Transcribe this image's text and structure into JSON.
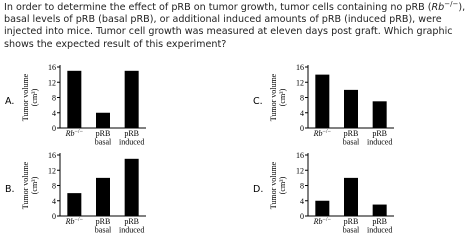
{
  "question": [
    "In order to determine the effect of pRB on tumor growth, tumor cells containing no pRB (",
    "Rb",
    "−/−",
    "), basal levels of pRB (basal pRB), or additional induced amounts of pRB (induced pRB), were injected into mice. Tumor cell growth was measured at eleven days post graft. Which graphic shows the expected result of this experiment?"
  ],
  "chart_data": [
    {
      "label": "A.",
      "type": "bar",
      "ylabel": [
        "Tumor volume",
        "(cm³)"
      ],
      "categories": [
        [
          "Rb",
          "−/−"
        ],
        [
          "pRB",
          "basal"
        ],
        [
          "pRB",
          "induced"
        ]
      ],
      "values": [
        15,
        4,
        15
      ],
      "color": "#000000",
      "ylim": [
        0,
        16
      ],
      "yticks": [
        0,
        4,
        8,
        12,
        16
      ]
    },
    {
      "label": "B.",
      "type": "bar",
      "ylabel": [
        "Tumor volume",
        "(cm³)"
      ],
      "categories": [
        [
          "Rb",
          "−/−"
        ],
        [
          "pRB",
          "basal"
        ],
        [
          "pRB",
          "induced"
        ]
      ],
      "values": [
        6,
        10,
        15
      ],
      "color": "#000000",
      "ylim": [
        0,
        16
      ],
      "yticks": [
        0,
        4,
        8,
        12,
        16
      ]
    },
    {
      "label": "C.",
      "type": "bar",
      "ylabel": [
        "Tumor volume",
        "(cm³)"
      ],
      "categories": [
        [
          "Rb",
          "−/−"
        ],
        [
          "pRB",
          "basal"
        ],
        [
          "pRB",
          "induced"
        ]
      ],
      "values": [
        14,
        10,
        7
      ],
      "color": "#000000",
      "ylim": [
        0,
        16
      ],
      "yticks": [
        0,
        4,
        8,
        12,
        16
      ]
    },
    {
      "label": "D.",
      "type": "bar",
      "ylabel": [
        "Tumor volume",
        "(cm³)"
      ],
      "categories": [
        [
          "Rb",
          "−/−"
        ],
        [
          "pRB",
          "basal"
        ],
        [
          "pRB",
          "induced"
        ]
      ],
      "values": [
        4,
        10,
        3
      ],
      "color": "#000000",
      "ylim": [
        0,
        16
      ],
      "yticks": [
        0,
        4,
        8,
        12,
        16
      ]
    }
  ]
}
